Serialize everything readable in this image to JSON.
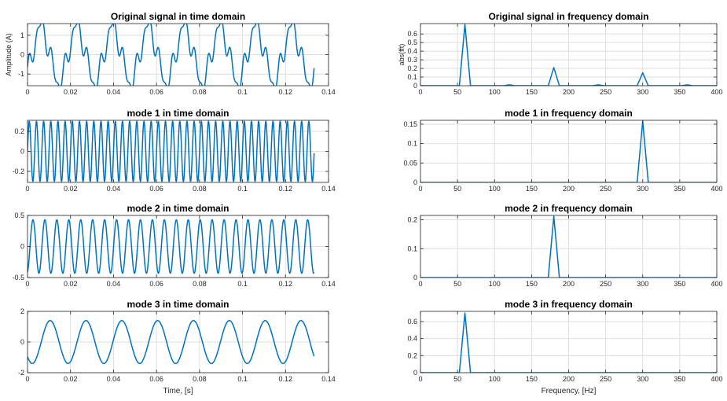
{
  "figure": {
    "style": {
      "line_color": "#0072bd",
      "grid_color": "#dedede",
      "axes_color": "#262626",
      "background": "#ffffff"
    },
    "xlabels": {
      "time": "Time, [s]",
      "frequency": "Frequency, [Hz]"
    }
  },
  "chart_data": [
    {
      "id": "orig-time",
      "type": "line",
      "title": "Original signal in time domain",
      "xlabel": "",
      "ylabel": "Amplitude (A)",
      "xlim": [
        0,
        0.14
      ],
      "ylim": [
        -1.6,
        1.6
      ],
      "xticks": [
        0,
        0.02,
        0.04,
        0.06,
        0.08,
        0.1,
        0.12,
        0.14
      ],
      "xtick_labels": [
        "0",
        "0.02",
        "0.04",
        "0.06",
        "0.08",
        "0.1",
        "0.12",
        "0.14"
      ],
      "yticks": [
        -1,
        0,
        1
      ],
      "ytick_labels": [
        "-1",
        "0",
        "1"
      ],
      "grid": true,
      "signal": {
        "t_range": [
          0,
          0.1333
        ],
        "components": [
          {
            "freq_hz": 60,
            "amp": 1.4,
            "phase_rad": -0.8
          },
          {
            "freq_hz": 180,
            "amp": 0.42,
            "phase_rad": 1.0
          },
          {
            "freq_hz": 300,
            "amp": 0.3,
            "phase_rad": 0.0
          }
        ]
      }
    },
    {
      "id": "orig-freq",
      "type": "line",
      "title": "Original signal in frequency domain",
      "xlabel": "",
      "ylabel": "abs(fft)",
      "xlim": [
        0,
        400
      ],
      "ylim": [
        0,
        0.72
      ],
      "xticks": [
        0,
        50,
        100,
        150,
        200,
        250,
        300,
        350,
        400
      ],
      "xtick_labels": [
        "0",
        "50",
        "100",
        "150",
        "200",
        "250",
        "300",
        "350",
        "400"
      ],
      "yticks": [
        0,
        0.1,
        0.2,
        0.3,
        0.4,
        0.5,
        0.6
      ],
      "ytick_labels": [
        "0",
        "0.1",
        "0.2",
        "0.3",
        "0.4",
        "0.5",
        "0.6"
      ],
      "grid": true,
      "x": [
        0,
        52.5,
        60,
        67.5,
        112.5,
        120,
        127.5,
        172.5,
        180,
        187.5,
        232.5,
        240,
        247.5,
        292.5,
        300,
        307.5,
        352.5,
        360,
        367.5,
        400
      ],
      "y": [
        0,
        0,
        0.71,
        0,
        0,
        0.01,
        0,
        0,
        0.21,
        0,
        0,
        0.01,
        0,
        0,
        0.15,
        0,
        0,
        0.01,
        0,
        0
      ]
    },
    {
      "id": "mode1-time",
      "type": "line",
      "title": "mode 1 in time domain",
      "xlabel": "",
      "ylabel": "",
      "xlim": [
        0,
        0.14
      ],
      "ylim": [
        -0.31,
        0.31
      ],
      "xticks": [
        0,
        0.02,
        0.04,
        0.06,
        0.08,
        0.1,
        0.12,
        0.14
      ],
      "xtick_labels": [
        "0",
        "0.02",
        "0.04",
        "0.06",
        "0.08",
        "0.1",
        "0.12",
        "0.14"
      ],
      "yticks": [
        -0.2,
        0,
        0.2
      ],
      "ytick_labels": [
        "-0.2",
        "0",
        "0.2"
      ],
      "grid": true,
      "signal": {
        "t_range": [
          0,
          0.1333
        ],
        "components": [
          {
            "freq_hz": 300,
            "amp": 0.3,
            "phase_rad": 0.0
          }
        ]
      }
    },
    {
      "id": "mode1-freq",
      "type": "line",
      "title": "mode 1 in frequency domain",
      "xlabel": "",
      "ylabel": "",
      "xlim": [
        0,
        400
      ],
      "ylim": [
        0,
        0.16
      ],
      "xticks": [
        0,
        50,
        100,
        150,
        200,
        250,
        300,
        350,
        400
      ],
      "xtick_labels": [
        "0",
        "50",
        "100",
        "150",
        "200",
        "250",
        "300",
        "350",
        "400"
      ],
      "yticks": [
        0,
        0.05,
        0.1,
        0.15
      ],
      "ytick_labels": [
        "0",
        "0.05",
        "0.1",
        "0.15"
      ],
      "grid": true,
      "x": [
        0,
        292.5,
        300,
        307.5,
        400
      ],
      "y": [
        0,
        0,
        0.158,
        0,
        0
      ]
    },
    {
      "id": "mode2-time",
      "type": "line",
      "title": "mode 2 in time domain",
      "xlabel": "",
      "ylabel": "",
      "xlim": [
        0,
        0.14
      ],
      "ylim": [
        -0.5,
        0.5
      ],
      "xticks": [
        0,
        0.02,
        0.04,
        0.06,
        0.08,
        0.1,
        0.12,
        0.14
      ],
      "xtick_labels": [
        "0",
        "0.02",
        "0.04",
        "0.06",
        "0.08",
        "0.1",
        "0.12",
        "0.14"
      ],
      "yticks": [
        -0.5,
        0,
        0.5
      ],
      "ytick_labels": [
        "-0.5",
        "0",
        "0.5"
      ],
      "grid": true,
      "signal": {
        "t_range": [
          0,
          0.1333
        ],
        "components": [
          {
            "freq_hz": 180,
            "amp": 0.43,
            "phase_rad": -1.3
          }
        ]
      }
    },
    {
      "id": "mode2-freq",
      "type": "line",
      "title": "mode 2 in frequency domain",
      "xlabel": "",
      "ylabel": "",
      "xlim": [
        0,
        400
      ],
      "ylim": [
        0,
        0.215
      ],
      "xticks": [
        0,
        50,
        100,
        150,
        200,
        250,
        300,
        350,
        400
      ],
      "xtick_labels": [
        "0",
        "50",
        "100",
        "150",
        "200",
        "250",
        "300",
        "350",
        "400"
      ],
      "yticks": [
        0,
        0.1,
        0.2
      ],
      "ytick_labels": [
        "0",
        "0.1",
        "0.2"
      ],
      "grid": true,
      "x": [
        0,
        172.5,
        180,
        187.5,
        400
      ],
      "y": [
        0,
        0,
        0.212,
        0,
        0
      ]
    },
    {
      "id": "mode3-time",
      "type": "line",
      "title": "mode 3 in time domain",
      "xlabel": "Time, [s]",
      "ylabel": "",
      "xlim": [
        0,
        0.14
      ],
      "ylim": [
        -2,
        2
      ],
      "xticks": [
        0,
        0.02,
        0.04,
        0.06,
        0.08,
        0.1,
        0.12,
        0.14
      ],
      "xtick_labels": [
        "0",
        "0.02",
        "0.04",
        "0.06",
        "0.08",
        "0.1",
        "0.12",
        "0.14"
      ],
      "yticks": [
        -2,
        0,
        2
      ],
      "ytick_labels": [
        "-2",
        "0",
        "2"
      ],
      "grid": true,
      "signal": {
        "t_range": [
          0,
          0.1333
        ],
        "components": [
          {
            "freq_hz": 60,
            "amp": 1.4,
            "phase_rad": -2.4
          }
        ]
      }
    },
    {
      "id": "mode3-freq",
      "type": "line",
      "title": "mode 3 in frequency domain",
      "xlabel": "Frequency, [Hz]",
      "ylabel": "",
      "xlim": [
        0,
        400
      ],
      "ylim": [
        0,
        0.72
      ],
      "xticks": [
        0,
        50,
        100,
        150,
        200,
        250,
        300,
        350,
        400
      ],
      "xtick_labels": [
        "0",
        "50",
        "100",
        "150",
        "200",
        "250",
        "300",
        "350",
        "400"
      ],
      "yticks": [
        0,
        0.2,
        0.4,
        0.6
      ],
      "ytick_labels": [
        "0",
        "0.2",
        "0.4",
        "0.6"
      ],
      "grid": true,
      "x": [
        0,
        52.5,
        60,
        67.5,
        400
      ],
      "y": [
        0,
        0,
        0.7,
        0,
        0
      ]
    }
  ]
}
